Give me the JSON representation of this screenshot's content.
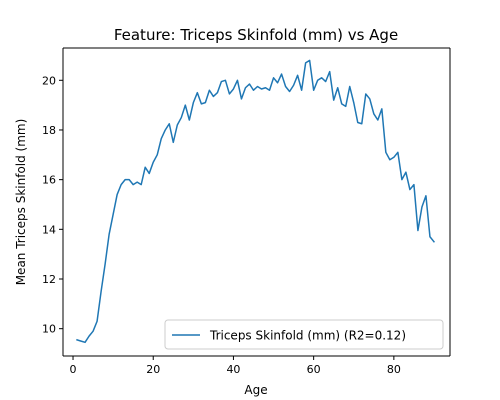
{
  "chart_data": {
    "type": "line",
    "title": "Feature: Triceps Skinfold (mm) vs Age",
    "xlabel": "Age",
    "ylabel": "Mean Triceps Skinfold (mm)",
    "xlim": [
      -2.5,
      94
    ],
    "ylim": [
      8.9,
      21.3
    ],
    "xticks": [
      0,
      20,
      40,
      60,
      80
    ],
    "yticks": [
      10,
      12,
      14,
      16,
      18,
      20
    ],
    "grid": false,
    "legend_position": "lower-right",
    "series": [
      {
        "name": "Triceps Skinfold (mm) (R2=0.12)",
        "color": "#1f77b4",
        "x": [
          1,
          2,
          3,
          4,
          5,
          6,
          7,
          8,
          9,
          10,
          11,
          12,
          13,
          14,
          15,
          16,
          17,
          18,
          19,
          20,
          21,
          22,
          23,
          24,
          25,
          26,
          27,
          28,
          29,
          30,
          31,
          32,
          33,
          34,
          35,
          36,
          37,
          38,
          39,
          40,
          41,
          42,
          43,
          44,
          45,
          46,
          47,
          48,
          49,
          50,
          51,
          52,
          53,
          54,
          55,
          56,
          57,
          58,
          59,
          60,
          61,
          62,
          63,
          64,
          65,
          66,
          67,
          68,
          69,
          70,
          71,
          72,
          73,
          74,
          75,
          76,
          77,
          78,
          79,
          80,
          81,
          82,
          83,
          84,
          85,
          86,
          87,
          88,
          89,
          90
        ],
        "y": [
          9.55,
          9.5,
          9.45,
          9.7,
          9.9,
          10.3,
          11.5,
          12.6,
          13.8,
          14.6,
          15.4,
          15.8,
          16.0,
          16.0,
          15.8,
          15.9,
          15.8,
          16.5,
          16.25,
          16.7,
          17.0,
          17.65,
          18.0,
          18.25,
          17.5,
          18.2,
          18.5,
          19.0,
          18.4,
          19.1,
          19.5,
          19.05,
          19.1,
          19.6,
          19.35,
          19.5,
          19.95,
          20.0,
          19.45,
          19.65,
          20.0,
          19.25,
          19.7,
          19.85,
          19.6,
          19.75,
          19.65,
          19.7,
          19.6,
          20.1,
          19.9,
          20.25,
          19.75,
          19.55,
          19.8,
          20.2,
          19.6,
          20.7,
          20.8,
          19.6,
          20.0,
          20.1,
          19.95,
          20.35,
          19.2,
          19.7,
          19.05,
          18.95,
          19.75,
          19.1,
          18.3,
          18.25,
          19.45,
          19.25,
          18.65,
          18.4,
          18.85,
          17.1,
          16.8,
          16.9,
          17.1,
          16.0,
          16.3,
          15.6,
          15.8,
          13.95,
          14.9,
          15.35,
          13.7,
          13.5
        ]
      }
    ]
  }
}
